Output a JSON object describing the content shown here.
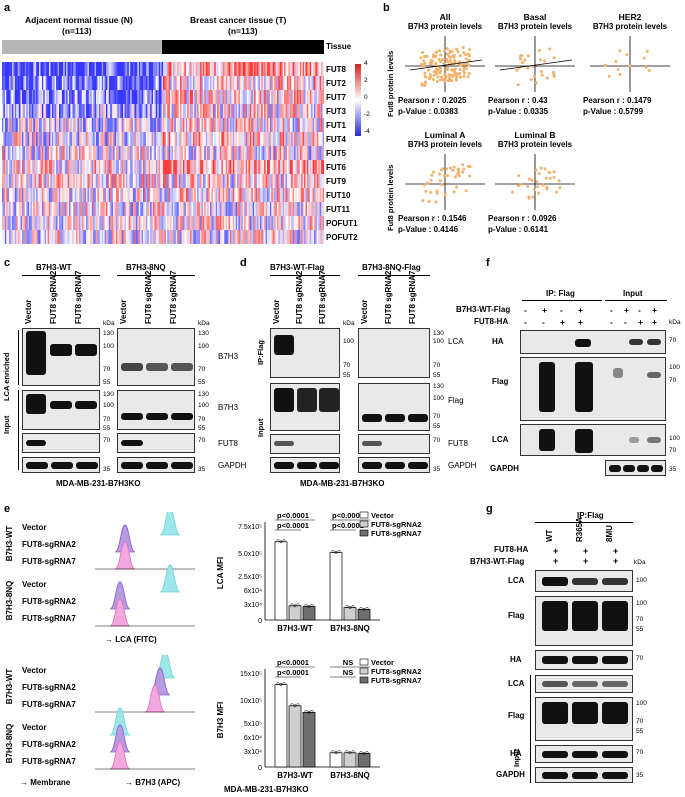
{
  "panels": {
    "a": "a",
    "b": "b",
    "c": "c",
    "d": "d",
    "e": "e",
    "f": "f",
    "g": "g"
  },
  "panel_a": {
    "group_n": "Adjacent normal tissue (N)",
    "group_n_count": "(n=113)",
    "group_t": "Breast cancer tissue (T)",
    "group_t_count": "(n=113)",
    "tissue_label": "Tissue",
    "genes": [
      "FUT8",
      "FUT2",
      "FUT7",
      "FUT3",
      "FUT1",
      "FUT4",
      "FUT5",
      "FUT6",
      "FUT9",
      "FUT10",
      "FUT11",
      "POFUT1",
      "POFUT2"
    ],
    "scale": [
      "4",
      "2",
      "0",
      "-2",
      "-4"
    ]
  },
  "panel_b": {
    "y_label": "Fut8 protein levels",
    "plots": [
      {
        "title": "All",
        "subtitle": "B7H3 protein levels",
        "pearson": "Pearson  r :  0.2025",
        "p": "p-Value :  0.0383"
      },
      {
        "title": "Basal",
        "subtitle": "B7H3 protein levels",
        "pearson": "Pearson  r :  0.43",
        "p": "p-Value :  0.0335"
      },
      {
        "title": "HER2",
        "subtitle": "B7H3 protein levels",
        "pearson": "Pearson  r :  0.1479",
        "p": "p-Value :  0.5799"
      },
      {
        "title": "Luminal A",
        "subtitle": "B7H3 protein levels",
        "pearson": "Pearson  r :  0.1546",
        "p": "p-Value :  0.4146"
      },
      {
        "title": "Luminal B",
        "subtitle": "B7H3 protein levels",
        "pearson": "Pearson  r :  0.0926",
        "p": "p-Value :  0.6141"
      }
    ]
  },
  "panel_c": {
    "group1": "B7H3-WT",
    "group2": "B7H3-8NQ",
    "lanes": [
      "Vector",
      "FUT8 sgRNA2",
      "FUT8 sgRNA7"
    ],
    "kda": "kDa",
    "lca_enriched": "LCA enriched",
    "input": "Input",
    "blot_b7h3": "B7H3",
    "blot_fut8": "FUT8",
    "blot_gapdh": "GAPDH",
    "cell_line": "MDA-MB-231-B7H3KO",
    "mw_top": [
      "130",
      "100",
      "70",
      "55"
    ],
    "mw_fut8": "70",
    "mw_gapdh": "35"
  },
  "panel_d": {
    "group1": "B7H3-WT-Flag",
    "group2": "B7H3-8NQ-Flag",
    "lanes": [
      "Vector",
      "FUT8 sgRNA2",
      "FUT8 sgRNA7"
    ],
    "kda": "kDa",
    "ip": "IP:Flag",
    "input": "Input",
    "blot_lca": "LCA",
    "blot_flag": "Flag",
    "blot_fut8": "FUT8",
    "blot_gapdh": "GAPDH",
    "cell_line": "MDA-MB-231-B7H3KO",
    "mw": [
      "130",
      "100",
      "70",
      "55"
    ],
    "mw_fut8": "70",
    "mw_gapdh": "35"
  },
  "panel_e": {
    "top_groups": [
      "B7H3-WT",
      "B7H3-8NQ"
    ],
    "rows": [
      "Vector",
      "FUT8-sgRNA2",
      "FUT8-sgRNA7"
    ],
    "x_top": "LCA (FITC)",
    "x_bottom": "B7H3 (APC)",
    "membrane": "Membrane",
    "cell_line": "MDA-MB-231-B7H3KO",
    "bottom_groups": [
      "B7H3-WT",
      "B7H3-8NQ"
    ],
    "legend": [
      "Vector",
      "FUT8-sgRNA2",
      "FUT8-sgRNA7"
    ],
    "pvals_top": [
      "p<0.0001",
      "p<0.0001",
      "p<0.0001",
      "p<0.0001"
    ],
    "pvals_bottom": [
      "p<0.0001",
      "p<0.0001",
      "NS",
      "NS"
    ],
    "ylabel_top": "LCA MFI",
    "ylabel_bottom": "B7H3 MFI",
    "yticks_top": [
      "7.5x10⁵",
      "5.0x10⁵",
      "2.5x10⁵",
      "6x10⁴",
      "3x10⁴",
      "0"
    ],
    "yticks_bottom": [
      "15x10⁵",
      "10x10⁵",
      "5x10⁵",
      "6x10⁴",
      "3x10⁴",
      "0"
    ],
    "xcats": [
      "B7H3-WT",
      "B7H3-8NQ"
    ]
  },
  "panel_f": {
    "ip": "IP: Flag",
    "input": "Input",
    "row1": "B7H3-WT-Flag",
    "row2": "FUT8-HA",
    "signs1": [
      "-",
      "+",
      "-",
      "+",
      "-",
      "+",
      "-",
      "+"
    ],
    "signs2": [
      "-",
      "-",
      "+",
      "+",
      "-",
      "-",
      "+",
      "+"
    ],
    "kda": "kDa",
    "blot_ha": "HA",
    "blot_flag": "Flag",
    "blot_lca": "LCA",
    "blot_gapdh": "GAPDH",
    "mw_ha": "70",
    "mw_flag": [
      "100",
      "70"
    ],
    "mw_lca": [
      "100",
      "70"
    ],
    "mw_gapdh": "35"
  },
  "panel_g": {
    "ip": "IP:Flag",
    "row1": "FUT8-HA",
    "row2": "B7H3-WT-Flag",
    "lanes": [
      "WT",
      "R365A",
      "8MU"
    ],
    "signs": [
      "+",
      "+",
      "+"
    ],
    "kda": "kDa",
    "input": "Input",
    "blot_lca": "LCA",
    "blot_flag": "Flag",
    "blot_ha": "HA",
    "blot_gapdh": "GAPDH",
    "mw_lca": "100",
    "mw_flag": [
      "100",
      "70",
      "55"
    ],
    "mw_ha": "70",
    "mw_gapdh": "35"
  },
  "chart_data": [
    {
      "type": "bar",
      "title": "",
      "ylabel": "LCA MFI",
      "categories": [
        "B7H3-WT",
        "B7H3-8NQ"
      ],
      "series": [
        {
          "name": "Vector",
          "values": [
            560000,
            430000
          ]
        },
        {
          "name": "FUT8-sgRNA2",
          "values": [
            40000,
            35000
          ]
        },
        {
          "name": "FUT8-sgRNA7",
          "values": [
            38000,
            30000
          ]
        }
      ]
    },
    {
      "type": "bar",
      "title": "",
      "ylabel": "B7H3 MFI",
      "categories": [
        "B7H3-WT",
        "B7H3-8NQ"
      ],
      "series": [
        {
          "name": "Vector",
          "values": [
            1200000,
            40000
          ]
        },
        {
          "name": "FUT8-sgRNA2",
          "values": [
            650000,
            40000
          ]
        },
        {
          "name": "FUT8-sgRNA7",
          "values": [
            480000,
            38000
          ]
        }
      ]
    }
  ]
}
